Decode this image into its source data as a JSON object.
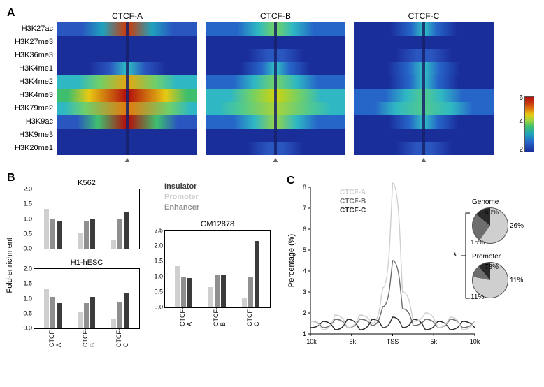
{
  "panelA": {
    "row_labels": [
      "H3K27ac",
      "H3K27me3",
      "H3K36me3",
      "H3K4me1",
      "H3K4me2",
      "H3K4me3",
      "H3K79me2",
      "H3K9ac",
      "H3K9me3",
      "H3K20me1"
    ],
    "column_titles": [
      "CTCF-A",
      "CTCF-B",
      "CTCF-C"
    ],
    "marker_glyph": "▲",
    "colorbar": {
      "colors_top_to_bottom": [
        "#b4120c",
        "#c93d0e",
        "#e07b10",
        "#e6c913",
        "#a6d43b",
        "#3fbf6e",
        "#1fa2bd",
        "#2666c9",
        "#1a2e9a"
      ],
      "ticks": [
        6,
        4,
        2
      ]
    },
    "tracks": {
      "CTCF-A": {
        "H3K27ac": {
          "base": "#2a56c0",
          "edge": "#1fa2bd",
          "peak": "#c93d0e",
          "spread": 0.35
        },
        "H3K27me3": {
          "base": "#1a2e9a",
          "edge": "#1a2e9a",
          "peak": "#1a2e9a",
          "spread": 0
        },
        "H3K36me3": {
          "base": "#1a2e9a",
          "edge": "#1a2e9a",
          "peak": "#1a2e9a",
          "spread": 0
        },
        "H3K4me1": {
          "base": "#1a2e9a",
          "edge": "#2a56c0",
          "peak": "#2fb8c3",
          "spread": 0.25
        },
        "H3K4me2": {
          "base": "#2fb8c3",
          "edge": "#6fd06a",
          "peak": "#e0a713",
          "spread": 0.4
        },
        "H3K4me3": {
          "base": "#3fbf6e",
          "edge": "#e6c913",
          "peak": "#b4120c",
          "spread": 0.55
        },
        "H3K79me2": {
          "base": "#2fb8c3",
          "edge": "#6fd06a",
          "peak": "#e07b10",
          "spread": 0.6
        },
        "H3K9ac": {
          "base": "#2a56c0",
          "edge": "#3fbf6e",
          "peak": "#b4120c",
          "spread": 0.42
        },
        "H3K9me3": {
          "base": "#1a2e9a",
          "edge": "#1a2e9a",
          "peak": "#1a2e9a",
          "spread": 0
        },
        "H3K20me1": {
          "base": "#1a2e9a",
          "edge": "#1a2e9a",
          "peak": "#1a2e9a",
          "spread": 0
        }
      },
      "CTCF-B": {
        "H3K27ac": {
          "base": "#2666c9",
          "edge": "#2fb8c3",
          "peak": "#6fd06a",
          "spread": 0.25
        },
        "H3K27me3": {
          "base": "#1a2e9a",
          "edge": "#1a2e9a",
          "peak": "#1a2e9a",
          "spread": 0
        },
        "H3K36me3": {
          "base": "#1a2e9a",
          "edge": "#2a56c0",
          "peak": "#2a56c0",
          "spread": 0.1
        },
        "H3K4me1": {
          "base": "#1a2e9a",
          "edge": "#2666c9",
          "peak": "#2fb8c3",
          "spread": 0.2
        },
        "H3K4me2": {
          "base": "#2666c9",
          "edge": "#2fb8c3",
          "peak": "#6fd06a",
          "spread": 0.3
        },
        "H3K4me3": {
          "base": "#2fb8c3",
          "edge": "#6fd06a",
          "peak": "#c9d313",
          "spread": 0.35
        },
        "H3K79me2": {
          "base": "#2fb8c3",
          "edge": "#4fc992",
          "peak": "#a6d43b",
          "spread": 0.5
        },
        "H3K9ac": {
          "base": "#2666c9",
          "edge": "#2fb8c3",
          "peak": "#8fd24f",
          "spread": 0.3
        },
        "H3K9me3": {
          "base": "#1a2e9a",
          "edge": "#1a2e9a",
          "peak": "#1a2e9a",
          "spread": 0
        },
        "H3K20me1": {
          "base": "#1a2e9a",
          "edge": "#2a56c0",
          "peak": "#2a56c0",
          "spread": 0.1
        }
      },
      "CTCF-C": {
        "H3K27ac": {
          "base": "#1a2e9a",
          "edge": "#2666c9",
          "peak": "#2fb8c3",
          "spread": 0.18
        },
        "H3K27me3": {
          "base": "#1a2e9a",
          "edge": "#1a2e9a",
          "peak": "#1a2e9a",
          "spread": 0
        },
        "H3K36me3": {
          "base": "#1a2e9a",
          "edge": "#2a56c0",
          "peak": "#2a56c0",
          "spread": 0.1
        },
        "H3K4me1": {
          "base": "#1a2e9a",
          "edge": "#2666c9",
          "peak": "#2fb8c3",
          "spread": 0.22
        },
        "H3K4me2": {
          "base": "#1a2e9a",
          "edge": "#2666c9",
          "peak": "#2fb8c3",
          "spread": 0.2
        },
        "H3K4me3": {
          "base": "#2666c9",
          "edge": "#2fb8c3",
          "peak": "#4fc992",
          "spread": 0.25
        },
        "H3K79me2": {
          "base": "#2666c9",
          "edge": "#2fb8c3",
          "peak": "#4fc992",
          "spread": 0.4
        },
        "H3K9ac": {
          "base": "#1a2e9a",
          "edge": "#2666c9",
          "peak": "#2fb8c3",
          "spread": 0.2
        },
        "H3K9me3": {
          "base": "#1a2e9a",
          "edge": "#1a2e9a",
          "peak": "#1a2e9a",
          "spread": 0
        },
        "H3K20me1": {
          "base": "#1a2e9a",
          "edge": "#2a56c0",
          "peak": "#2a56c0",
          "spread": 0.1
        }
      }
    }
  },
  "panelB": {
    "ylabel": "Fold-enrichment",
    "categories": [
      "CTCF-A",
      "CTCF-B",
      "CTCF-C"
    ],
    "series": [
      {
        "name": "Insulator",
        "color": "#3b3b3b"
      },
      {
        "name": "Promoter",
        "color": "#cfcfcf"
      },
      {
        "name": "Enhancer",
        "color": "#8f8f8f"
      }
    ],
    "plots": [
      {
        "title": "K562",
        "ylim": [
          0,
          2.0
        ],
        "ytick_step": 0.5,
        "values": {
          "CTCF-A": {
            "Promoter": 1.35,
            "Enhancer": 1.0,
            "Insulator": 0.95
          },
          "CTCF-B": {
            "Promoter": 0.55,
            "Enhancer": 0.95,
            "Insulator": 1.0
          },
          "CTCF-C": {
            "Promoter": 0.3,
            "Enhancer": 1.0,
            "Insulator": 1.25
          }
        }
      },
      {
        "title": "H1-hESC",
        "ylim": [
          0,
          2.0
        ],
        "ytick_step": 0.5,
        "values": {
          "CTCF-A": {
            "Promoter": 1.35,
            "Enhancer": 1.05,
            "Insulator": 0.85
          },
          "CTCF-B": {
            "Promoter": 0.55,
            "Enhancer": 0.85,
            "Insulator": 1.05
          },
          "CTCF-C": {
            "Promoter": 0.3,
            "Enhancer": 0.9,
            "Insulator": 1.2
          }
        }
      },
      {
        "title": "GM12878",
        "ylim": [
          0,
          2.5
        ],
        "ytick_step": 0.5,
        "values": {
          "CTCF-A": {
            "Promoter": 1.35,
            "Enhancer": 1.0,
            "Insulator": 0.95
          },
          "CTCF-B": {
            "Promoter": 0.65,
            "Enhancer": 1.05,
            "Insulator": 1.05
          },
          "CTCF-C": {
            "Promoter": 0.3,
            "Enhancer": 1.0,
            "Insulator": 2.15
          }
        }
      }
    ]
  },
  "panelC": {
    "ylabel": "Percentage (%)",
    "ylim": [
      1,
      8
    ],
    "ytick_step": 1,
    "xlim": [
      -10,
      10
    ],
    "xticks": [
      "-10k",
      "-5k",
      "TSS",
      "5k",
      "10k"
    ],
    "legend": [
      {
        "name": "CTCF-A",
        "color": "#cfcfcf"
      },
      {
        "name": "CTCF-B",
        "color": "#6e6e6e"
      },
      {
        "name": "CTCF-C",
        "color": "#2a2a2a"
      }
    ],
    "lines": {
      "CTCF-A": {
        "color": "#cfcfcf",
        "points": [
          [
            -10,
            1.6
          ],
          [
            -8.5,
            1.2
          ],
          [
            -7,
            1.9
          ],
          [
            -5.5,
            1.3
          ],
          [
            -4,
            1.9
          ],
          [
            -2.5,
            1.5
          ],
          [
            -1.2,
            3.2
          ],
          [
            0,
            8.2
          ],
          [
            1.2,
            3.0
          ],
          [
            2.5,
            1.6
          ],
          [
            4,
            2.0
          ],
          [
            5.5,
            1.3
          ],
          [
            7,
            1.8
          ],
          [
            8.5,
            1.2
          ],
          [
            10,
            1.6
          ]
        ]
      },
      "CTCF-B": {
        "color": "#6e6e6e",
        "points": [
          [
            -10,
            1.6
          ],
          [
            -8.5,
            1.3
          ],
          [
            -7,
            1.7
          ],
          [
            -5.5,
            1.3
          ],
          [
            -4,
            1.7
          ],
          [
            -2.5,
            1.4
          ],
          [
            -1.2,
            2.3
          ],
          [
            0,
            4.5
          ],
          [
            1.2,
            2.2
          ],
          [
            2.5,
            1.4
          ],
          [
            4,
            1.7
          ],
          [
            5.5,
            1.3
          ],
          [
            7,
            1.7
          ],
          [
            8.5,
            1.3
          ],
          [
            10,
            1.6
          ]
        ]
      },
      "CTCF-C": {
        "color": "#2a2a2a",
        "points": [
          [
            -10,
            1.3
          ],
          [
            -8.5,
            1.6
          ],
          [
            -7,
            1.2
          ],
          [
            -5.5,
            1.7
          ],
          [
            -4,
            1.2
          ],
          [
            -2.5,
            1.7
          ],
          [
            -1.2,
            1.3
          ],
          [
            0,
            1.8
          ],
          [
            1.2,
            1.3
          ],
          [
            2.5,
            1.7
          ],
          [
            4,
            1.2
          ],
          [
            5.5,
            1.6
          ],
          [
            7,
            1.2
          ],
          [
            8.5,
            1.6
          ],
          [
            10,
            1.3
          ]
        ]
      }
    },
    "pies": [
      {
        "title": "Genome",
        "slices": [
          {
            "pct": 60,
            "color": "#cfcfcf",
            "label": "60%"
          },
          {
            "pct": 26,
            "color": "#6e6e6e",
            "label": "26%"
          },
          {
            "pct": 15,
            "color": "#2a2a2a",
            "label": "15%"
          }
        ]
      },
      {
        "title": "Promoter",
        "slices": [
          {
            "pct": 78,
            "color": "#cfcfcf",
            "label": "78%"
          },
          {
            "pct": 11,
            "color": "#6e6e6e",
            "label": "11%"
          },
          {
            "pct": 11,
            "color": "#2a2a2a",
            "label": "11%"
          }
        ]
      }
    ],
    "bracket_symbol": "*"
  },
  "labels": {
    "A": "A",
    "B": "B",
    "C": "C"
  }
}
